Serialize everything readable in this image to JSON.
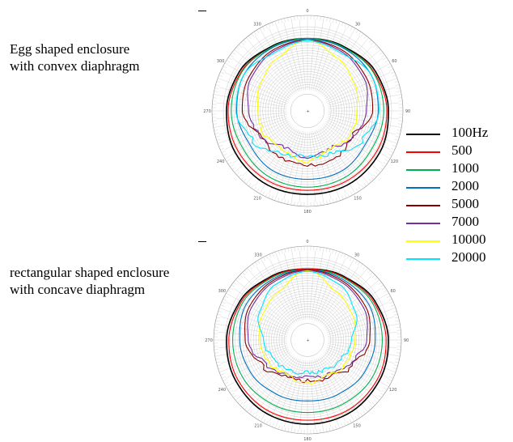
{
  "captions": {
    "top": [
      "Egg shaped enclosure",
      "with convex diaphragm"
    ],
    "bottom": [
      "rectangular shaped enclosure",
      "with concave diaphragm"
    ]
  },
  "angle_ticks": [
    "0",
    "30",
    "60",
    "90",
    "120",
    "150",
    "180",
    "210",
    "240",
    "270",
    "300",
    "330"
  ],
  "legend": [
    {
      "label": "100Hz",
      "color": "#000000"
    },
    {
      "label": "500",
      "color": "#ff0000"
    },
    {
      "label": "1000",
      "color": "#00b050"
    },
    {
      "label": "2000",
      "color": "#0070c0"
    },
    {
      "label": "5000",
      "color": "#8b0000"
    },
    {
      "label": "7000",
      "color": "#7030a0"
    },
    {
      "label": "10000",
      "color": "#ffff00"
    },
    {
      "label": "20000",
      "color": "#00e5ff"
    }
  ],
  "chart_data": [
    {
      "type": "line",
      "subtype": "polar",
      "title": "Egg shaped enclosure with convex diaphragm",
      "theta_deg": [
        0,
        30,
        60,
        90,
        120,
        150,
        180,
        210,
        240,
        270,
        300,
        330
      ],
      "radial_range": [
        0,
        1
      ],
      "series": [
        {
          "name": "100Hz",
          "r": [
            0.85,
            0.87,
            0.93,
            0.96,
            0.99,
            1.0,
            0.99,
            1.0,
            0.99,
            0.96,
            0.93,
            0.87
          ]
        },
        {
          "name": "500",
          "r": [
            0.85,
            0.86,
            0.91,
            0.94,
            0.95,
            0.95,
            0.94,
            0.95,
            0.95,
            0.94,
            0.91,
            0.86
          ]
        },
        {
          "name": "1000",
          "r": [
            0.85,
            0.86,
            0.9,
            0.9,
            0.88,
            0.9,
            0.9,
            0.9,
            0.88,
            0.9,
            0.9,
            0.86
          ]
        },
        {
          "name": "2000",
          "r": [
            0.84,
            0.85,
            0.86,
            0.83,
            0.78,
            0.81,
            0.8,
            0.81,
            0.78,
            0.83,
            0.86,
            0.85
          ]
        },
        {
          "name": "5000",
          "r": [
            0.83,
            0.82,
            0.79,
            0.76,
            0.58,
            0.62,
            0.62,
            0.62,
            0.58,
            0.76,
            0.79,
            0.82
          ]
        },
        {
          "name": "7000",
          "r": [
            0.83,
            0.8,
            0.76,
            0.68,
            0.6,
            0.48,
            0.52,
            0.48,
            0.6,
            0.68,
            0.76,
            0.8
          ]
        },
        {
          "name": "10000",
          "r": [
            0.83,
            0.7,
            0.62,
            0.56,
            0.55,
            0.5,
            0.58,
            0.5,
            0.55,
            0.56,
            0.62,
            0.7
          ]
        },
        {
          "name": "20000",
          "r": [
            0.82,
            0.78,
            0.86,
            0.84,
            0.72,
            0.55,
            0.5,
            0.55,
            0.72,
            0.84,
            0.86,
            0.78
          ]
        }
      ]
    },
    {
      "type": "line",
      "subtype": "polar",
      "title": "rectangular shaped enclosure with concave diaphragm",
      "theta_deg": [
        0,
        30,
        60,
        90,
        120,
        150,
        180,
        210,
        240,
        270,
        300,
        330
      ],
      "radial_range": [
        0,
        1
      ],
      "series": [
        {
          "name": "100Hz",
          "r": [
            0.85,
            0.88,
            0.94,
            0.98,
            1.0,
            1.02,
            1.02,
            1.02,
            1.0,
            0.98,
            0.94,
            0.88
          ]
        },
        {
          "name": "500",
          "r": [
            0.85,
            0.87,
            0.92,
            0.95,
            0.97,
            0.98,
            0.97,
            0.98,
            0.97,
            0.95,
            0.92,
            0.87
          ]
        },
        {
          "name": "1000",
          "r": [
            0.84,
            0.86,
            0.9,
            0.9,
            0.9,
            0.88,
            0.87,
            0.88,
            0.9,
            0.9,
            0.9,
            0.86
          ]
        },
        {
          "name": "2000",
          "r": [
            0.84,
            0.84,
            0.85,
            0.81,
            0.78,
            0.74,
            0.72,
            0.74,
            0.78,
            0.81,
            0.85,
            0.84
          ]
        },
        {
          "name": "5000",
          "r": [
            0.84,
            0.82,
            0.8,
            0.74,
            0.6,
            0.48,
            0.46,
            0.48,
            0.6,
            0.74,
            0.8,
            0.82
          ]
        },
        {
          "name": "7000",
          "r": [
            0.83,
            0.8,
            0.77,
            0.7,
            0.56,
            0.45,
            0.42,
            0.45,
            0.56,
            0.7,
            0.77,
            0.8
          ]
        },
        {
          "name": "10000",
          "r": [
            0.83,
            0.66,
            0.6,
            0.55,
            0.52,
            0.45,
            0.5,
            0.45,
            0.52,
            0.55,
            0.6,
            0.66
          ]
        },
        {
          "name": "20000",
          "r": [
            0.82,
            0.76,
            0.65,
            0.5,
            0.44,
            0.38,
            0.35,
            0.38,
            0.44,
            0.5,
            0.65,
            0.76
          ]
        }
      ]
    }
  ]
}
